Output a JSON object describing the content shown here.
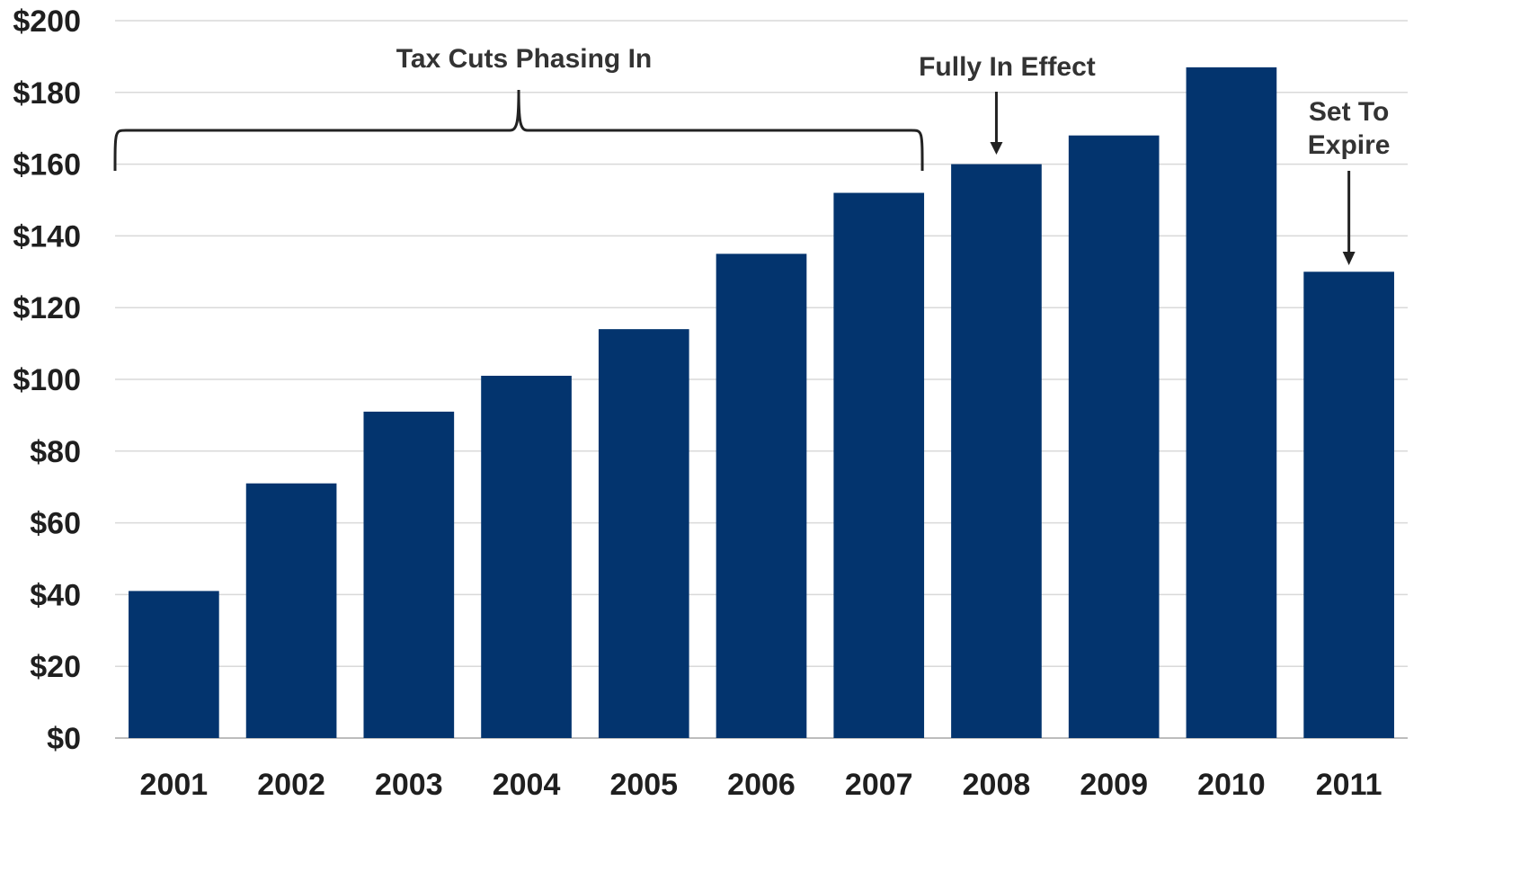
{
  "chart_data": {
    "type": "bar",
    "title": "",
    "xlabel": "",
    "ylabel": "",
    "categories": [
      "2001",
      "2002",
      "2003",
      "2004",
      "2005",
      "2006",
      "2007",
      "2008",
      "2009",
      "2010",
      "2011"
    ],
    "values": [
      41,
      71,
      91,
      101,
      114,
      135,
      152,
      160,
      168,
      187,
      130
    ],
    "ylim": [
      0,
      200
    ],
    "yticks": [
      0,
      20,
      40,
      60,
      80,
      100,
      120,
      140,
      160,
      180,
      200
    ],
    "ytick_labels": [
      "$0",
      "$20",
      "$40",
      "$60",
      "$80",
      "$100",
      "$120",
      "$140",
      "$160",
      "$180",
      "$200"
    ],
    "grid": true,
    "bar_color": "#03346E",
    "annotations": {
      "phasing_in": "Tax Cuts Phasing In",
      "fully_in_effect": "Fully In Effect",
      "set_to_expire_line1": "Set To",
      "set_to_expire_line2": "Expire"
    }
  }
}
